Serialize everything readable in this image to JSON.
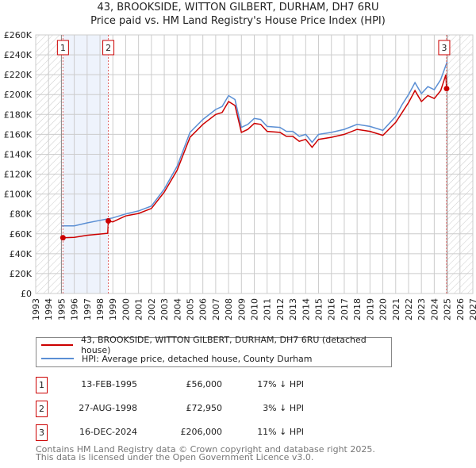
{
  "title_line1": "43, BROOKSIDE, WITTON GILBERT, DURHAM, DH7 6RU",
  "title_line2": "Price paid vs. HM Land Registry's House Price Index (HPI)",
  "chart_data": {
    "type": "line",
    "title": "43, BROOKSIDE, WITTON GILBERT, DURHAM, DH7 6RU — Price paid vs. HM Land Registry's House Price Index (HPI)",
    "xlim": [
      1993,
      2027
    ],
    "ylim": [
      0,
      260000
    ],
    "grid": true,
    "x_ticks": [
      "1993",
      "1994",
      "1995",
      "1996",
      "1997",
      "1998",
      "1999",
      "2000",
      "2001",
      "2002",
      "2003",
      "2004",
      "2005",
      "2006",
      "2007",
      "2008",
      "2009",
      "2010",
      "2011",
      "2012",
      "2013",
      "2014",
      "2015",
      "2016",
      "2017",
      "2018",
      "2019",
      "2020",
      "2021",
      "2022",
      "2023",
      "2024",
      "2025",
      "2026",
      "2027"
    ],
    "y_ticks": [
      {
        "value": 0,
        "label": "£0"
      },
      {
        "value": 20000,
        "label": "£20K"
      },
      {
        "value": 40000,
        "label": "£40K"
      },
      {
        "value": 60000,
        "label": "£60K"
      },
      {
        "value": 80000,
        "label": "£80K"
      },
      {
        "value": 100000,
        "label": "£100K"
      },
      {
        "value": 120000,
        "label": "£120K"
      },
      {
        "value": 140000,
        "label": "£140K"
      },
      {
        "value": 160000,
        "label": "£160K"
      },
      {
        "value": 180000,
        "label": "£180K"
      },
      {
        "value": 200000,
        "label": "£200K"
      },
      {
        "value": 220000,
        "label": "£220K"
      },
      {
        "value": 240000,
        "label": "£240K"
      },
      {
        "value": 260000,
        "label": "£260K"
      }
    ],
    "series": [
      {
        "name": "43, BROOKSIDE, WITTON GILBERT, DURHAM, DH7 6RU (detached house)",
        "color": "#cc0000",
        "points": [
          [
            1995.12,
            56000
          ],
          [
            1996,
            56500
          ],
          [
            1997,
            58500
          ],
          [
            1998.6,
            60500
          ],
          [
            1998.65,
            72950
          ],
          [
            1999,
            72000
          ],
          [
            2000,
            78000
          ],
          [
            2001,
            80500
          ],
          [
            2002,
            85500
          ],
          [
            2003,
            102000
          ],
          [
            2004,
            124000
          ],
          [
            2005,
            157000
          ],
          [
            2006,
            170000
          ],
          [
            2007,
            180000
          ],
          [
            2007.5,
            182000
          ],
          [
            2008,
            193000
          ],
          [
            2008.5,
            189000
          ],
          [
            2009,
            162000
          ],
          [
            2009.5,
            165000
          ],
          [
            2010,
            171000
          ],
          [
            2010.5,
            170000
          ],
          [
            2011,
            163000
          ],
          [
            2012,
            162000
          ],
          [
            2012.5,
            158000
          ],
          [
            2013,
            158000
          ],
          [
            2013.5,
            153000
          ],
          [
            2014,
            155000
          ],
          [
            2014.5,
            147000
          ],
          [
            2015,
            155000
          ],
          [
            2016,
            157000
          ],
          [
            2017,
            160000
          ],
          [
            2018,
            165000
          ],
          [
            2019,
            163000
          ],
          [
            2020,
            159000
          ],
          [
            2021,
            172000
          ],
          [
            2021.5,
            182000
          ],
          [
            2022,
            192000
          ],
          [
            2022.5,
            204000
          ],
          [
            2023,
            193000
          ],
          [
            2023.5,
            199000
          ],
          [
            2024,
            196000
          ],
          [
            2024.5,
            204000
          ],
          [
            2024.9,
            220000
          ],
          [
            2024.96,
            206000
          ]
        ]
      },
      {
        "name": "HPI: Average price, detached house, County Durham",
        "color": "#5b8fd4",
        "points": [
          [
            1995,
            68000
          ],
          [
            1996,
            68000
          ],
          [
            1997,
            71000
          ],
          [
            1998,
            73500
          ],
          [
            1999,
            76000
          ],
          [
            2000,
            80000
          ],
          [
            2001,
            83000
          ],
          [
            2002,
            88000
          ],
          [
            2003,
            105000
          ],
          [
            2004,
            128000
          ],
          [
            2005,
            162000
          ],
          [
            2006,
            175000
          ],
          [
            2007,
            185000
          ],
          [
            2007.5,
            188000
          ],
          [
            2008,
            199000
          ],
          [
            2008.5,
            195000
          ],
          [
            2009,
            167000
          ],
          [
            2009.5,
            170000
          ],
          [
            2010,
            176000
          ],
          [
            2010.5,
            175000
          ],
          [
            2011,
            168000
          ],
          [
            2012,
            167000
          ],
          [
            2012.5,
            163000
          ],
          [
            2013,
            163000
          ],
          [
            2013.5,
            158000
          ],
          [
            2014,
            160000
          ],
          [
            2014.5,
            152000
          ],
          [
            2015,
            160000
          ],
          [
            2016,
            162000
          ],
          [
            2017,
            165000
          ],
          [
            2018,
            170000
          ],
          [
            2019,
            168000
          ],
          [
            2020,
            164000
          ],
          [
            2021,
            178000
          ],
          [
            2021.5,
            190000
          ],
          [
            2022,
            200000
          ],
          [
            2022.5,
            212000
          ],
          [
            2023,
            201000
          ],
          [
            2023.5,
            208000
          ],
          [
            2024,
            205000
          ],
          [
            2024.5,
            215000
          ],
          [
            2025,
            233000
          ]
        ]
      }
    ],
    "sales": [
      {
        "label": "1",
        "x": 1995.12,
        "value": 56000
      },
      {
        "label": "2",
        "x": 1998.65,
        "value": 72950
      },
      {
        "label": "3",
        "x": 2024.96,
        "value": 206000
      }
    ],
    "hatched_ranges": [
      [
        1993,
        1995
      ],
      [
        2025,
        2027
      ]
    ],
    "shaded_range": [
      1995.12,
      1998.65
    ],
    "legend_position": "below"
  },
  "legend": {
    "property": "43, BROOKSIDE, WITTON GILBERT, DURHAM, DH7 6RU (detached house)",
    "hpi": "HPI: Average price, detached house, County Durham"
  },
  "transactions": [
    {
      "num": "1",
      "date": "13-FEB-1995",
      "price": "£56,000",
      "hpi": "17% ↓ HPI"
    },
    {
      "num": "2",
      "date": "27-AUG-1998",
      "price": "£72,950",
      "hpi": "3% ↓ HPI"
    },
    {
      "num": "3",
      "date": "16-DEC-2024",
      "price": "£206,000",
      "hpi": "11% ↓ HPI"
    }
  ],
  "footer_line1": "Contains HM Land Registry data © Crown copyright and database right 2025.",
  "footer_line2": "This data is licensed under the Open Government Licence v3.0."
}
